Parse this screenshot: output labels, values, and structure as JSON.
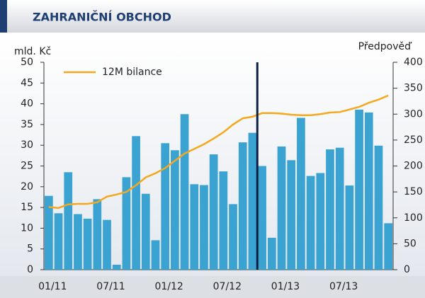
{
  "chart_data": {
    "type": "bar",
    "title": "ZAHRANIČNÍ OBCHOD",
    "ylabel": "mld. Kč",
    "y2label": "Předpověď",
    "categories": [
      "01/11",
      null,
      null,
      null,
      null,
      null,
      "07/11",
      null,
      null,
      null,
      null,
      null,
      "01/12",
      null,
      null,
      null,
      null,
      null,
      "07/12",
      null,
      null,
      null,
      null,
      null,
      "01/13",
      null,
      null,
      null,
      null,
      null,
      "07/13",
      null,
      null,
      null,
      null,
      null
    ],
    "series": [
      {
        "name": null,
        "color": "#3ba3d2",
        "values": [
          17.8,
          13.6,
          23.5,
          13.4,
          12.3,
          17,
          12,
          1.2,
          22.3,
          32.2,
          18.3,
          7.1,
          30.5,
          28.8,
          37.5,
          20.6,
          20.4,
          27.8,
          23.7,
          15.8,
          30.7,
          33,
          25,
          7.7,
          29.7,
          26.4,
          36.6,
          22.6,
          23.3,
          29,
          29.4,
          20.3,
          38.6,
          37.9,
          29.9,
          11.2
        ]
      },
      {
        "name": "12M bilance",
        "color": "#f5a81e",
        "axis": "y2",
        "type": "line",
        "values": [
          121,
          119,
          126,
          127,
          127,
          130,
          141,
          145,
          150,
          163,
          178,
          186,
          196,
          210,
          224,
          233,
          242,
          253,
          265,
          280,
          292,
          295,
          302,
          302,
          301,
          299,
          298,
          298,
          300,
          303,
          304,
          309,
          314,
          322,
          328,
          336
        ]
      }
    ],
    "ylim": [
      0,
      50
    ],
    "yticks": [
      0,
      5,
      10,
      15,
      20,
      25,
      30,
      35,
      40,
      45,
      50
    ],
    "y2lim": [
      0,
      400
    ],
    "y2ticks": [
      0,
      50,
      100,
      150,
      200,
      250,
      300,
      350,
      400
    ]
  }
}
